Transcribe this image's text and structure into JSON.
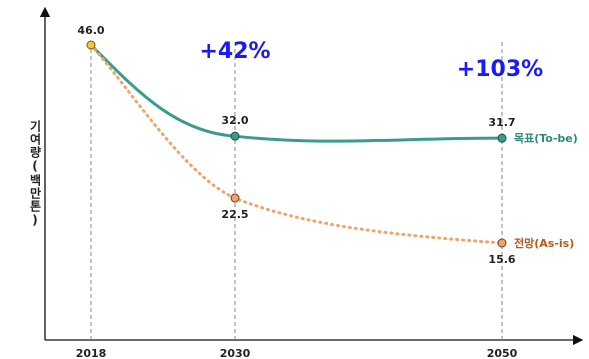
{
  "chart_data": {
    "type": "line",
    "title": "",
    "xlabel": "",
    "ylabel": "기여량(백만톤)",
    "x": [
      "2018",
      "2030",
      "2050"
    ],
    "xlim": [
      2018,
      2050
    ],
    "ylim": [
      0,
      52
    ],
    "grid": false,
    "series": [
      {
        "name": "목표(To-be)",
        "x": [
          2018,
          2030,
          2050
        ],
        "values": [
          46.0,
          32.0,
          31.7
        ],
        "labels": [
          "46.0",
          "32.0",
          "31.7"
        ],
        "color": "#3c9c8c",
        "style": "solid"
      },
      {
        "name": "전망(As-is)",
        "x": [
          2018,
          2030,
          2050
        ],
        "values": [
          46.0,
          22.5,
          15.6
        ],
        "labels": [
          "",
          "22.5",
          "15.6"
        ],
        "color": "#f0a46a",
        "style": "dotted"
      }
    ],
    "start_marker_color": "#f5c242",
    "annotations": [
      {
        "text": "+42%",
        "color": "#1a1aff"
      },
      {
        "text": "+103%",
        "color": "#1a1aff"
      }
    ]
  }
}
